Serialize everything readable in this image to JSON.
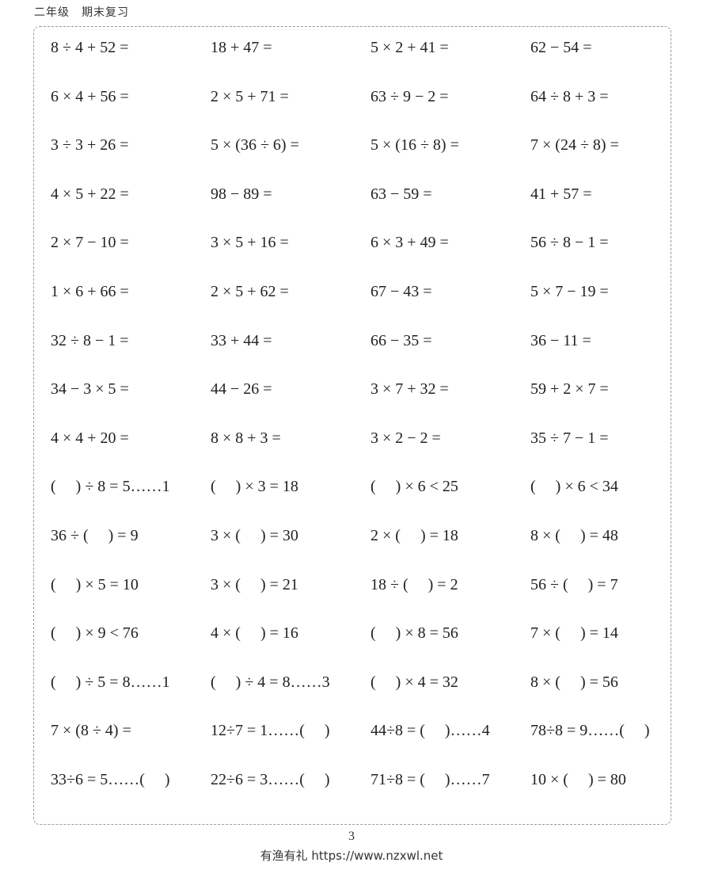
{
  "header": {
    "title": "二年级　期末复习"
  },
  "problems": [
    [
      "8 ÷ 4 + 52 =",
      "18 + 47 =",
      "5 × 2 + 41 =",
      "62 − 54 ="
    ],
    [
      "6 × 4 + 56 =",
      "2 × 5 + 71 =",
      "63 ÷ 9 − 2 =",
      "64 ÷ 8 + 3 ="
    ],
    [
      "3 ÷ 3 + 26 =",
      "5 × (36 ÷ 6) =",
      "5 × (16 ÷ 8) =",
      "7 × (24 ÷ 8) ="
    ],
    [
      "4 × 5 + 22 =",
      "98 − 89 =",
      "63 − 59 =",
      "41 + 57 ="
    ],
    [
      "2 × 7 − 10 =",
      "3 × 5 + 16 =",
      "6 × 3 + 49 =",
      "56 ÷ 8 − 1 ="
    ],
    [
      "1 × 6 + 66 =",
      "2 × 5 + 62 =",
      "67 − 43 =",
      "5 × 7 − 19 ="
    ],
    [
      "32 ÷ 8 − 1 =",
      "33 + 44 =",
      "66 − 35 =",
      "36 − 11 ="
    ],
    [
      "34 − 3 × 5 =",
      "44 − 26 =",
      "3 × 7 + 32 =",
      "59 + 2 × 7 ="
    ],
    [
      "4 × 4 + 20 =",
      "8 × 8 + 3 =",
      "3 × 2 − 2 =",
      "35 ÷ 7 − 1 ="
    ],
    [
      "(　 ) ÷ 8 = 5……1",
      "(　 ) × 3 = 18",
      "(　 ) × 6 < 25",
      "(　 ) × 6 < 34"
    ],
    [
      "36 ÷ (　 ) = 9",
      "3 × (　 ) = 30",
      "2 × (　 ) = 18",
      "8 × (　 ) = 48"
    ],
    [
      "(　 ) × 5 = 10",
      "3 × (　 ) = 21",
      "18 ÷ (　 ) = 2",
      "56 ÷ (　 ) = 7"
    ],
    [
      "(　 ) × 9 < 76",
      "4 × (　 ) = 16",
      "(　 ) × 8 = 56",
      "7 × (　 ) = 14"
    ],
    [
      "(　 ) ÷ 5 = 8……1",
      "(　 ) ÷ 4 = 8……3",
      "(　 ) × 4 = 32",
      "8 × (　 ) = 56"
    ],
    [
      "7 × (8 ÷ 4) =",
      "12÷7 = 1……(　 )",
      "44÷8 = (　 )……4",
      "78÷8 = 9……(　 )"
    ],
    [
      "33÷6 = 5……(　 )",
      "22÷6 = 3……(　 )",
      "71÷8 = (　 )……7",
      "10 × (　 ) = 80"
    ]
  ],
  "page_number": "3",
  "footer": {
    "text": "有渔有礼 https://www.nzxwl.net"
  }
}
